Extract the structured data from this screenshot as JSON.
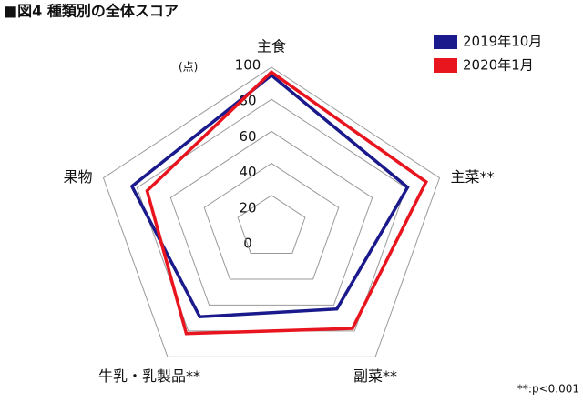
{
  "chart_data": {
    "type": "radar",
    "title": "■図4 種類別の全体スコア",
    "categories": [
      "主食",
      "主菜**",
      "副菜**",
      "牛乳・乳製品**",
      "果物"
    ],
    "series": [
      {
        "name": "2019年10月",
        "color": "#1a1a8c",
        "values": [
          95,
          81,
          63,
          69,
          83
        ]
      },
      {
        "name": "2020年1月",
        "color": "#e8141e",
        "values": [
          97,
          92,
          78,
          82,
          74
        ]
      }
    ],
    "ylim": [
      0,
      100
    ],
    "yticks": [
      0,
      20,
      40,
      60,
      80,
      100
    ],
    "unit": "(点)",
    "note": "**:p<0.001"
  }
}
